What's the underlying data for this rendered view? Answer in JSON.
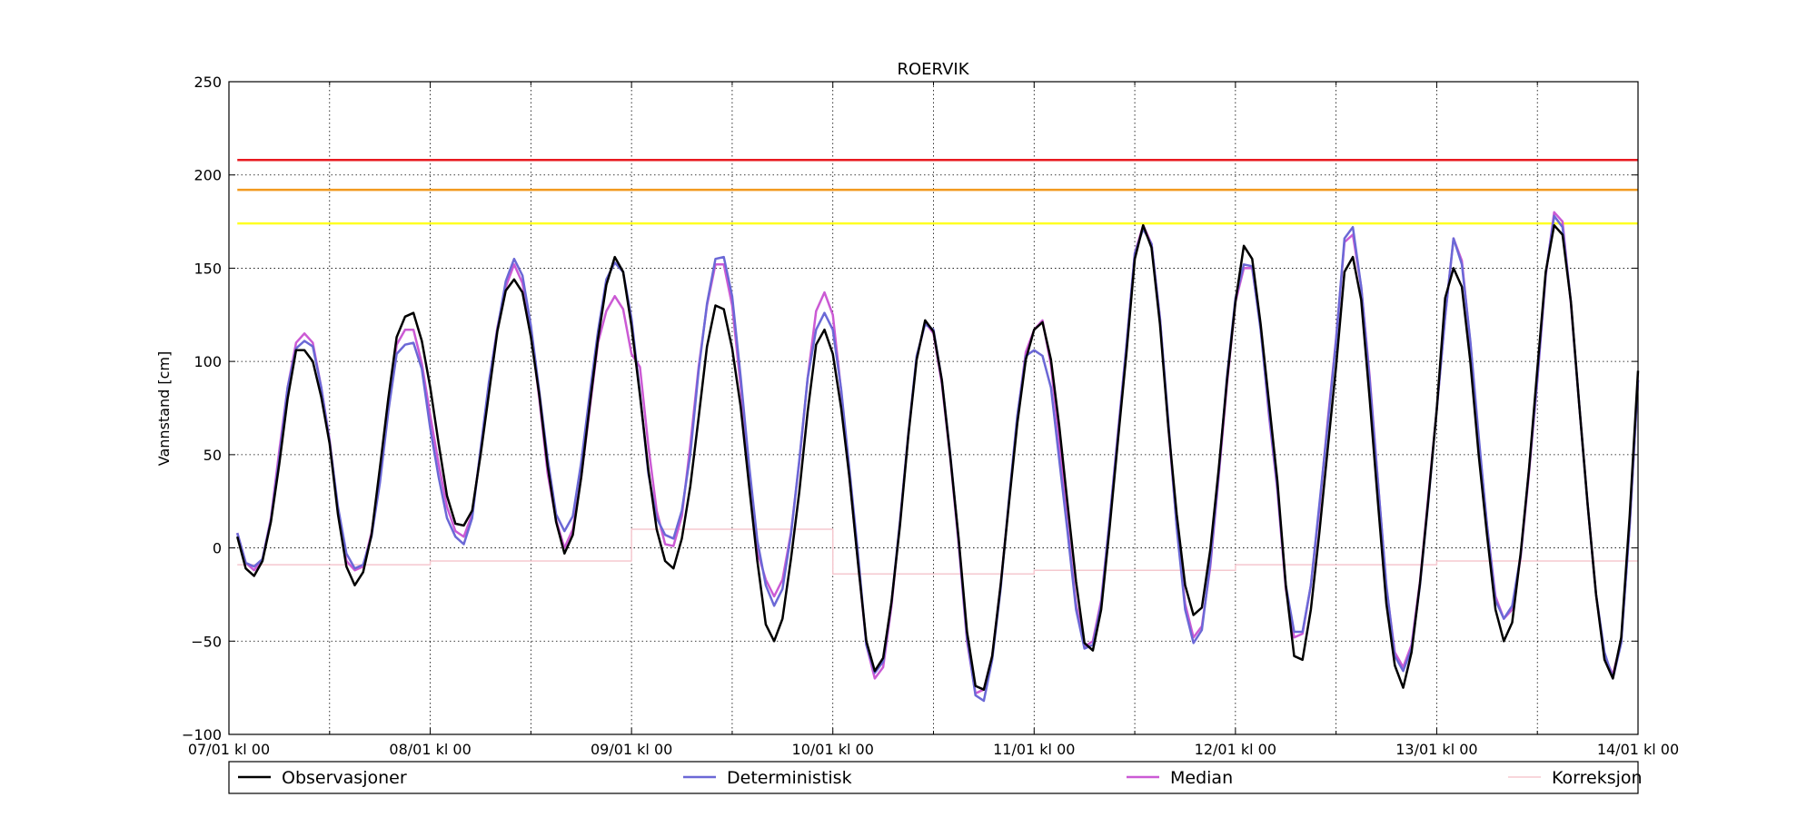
{
  "chart_data": {
    "type": "line",
    "title": "ROERVIK",
    "xlabel": "",
    "ylabel": "Vannstand [cm]",
    "ylim": [
      -100,
      250
    ],
    "yticks": [
      -100,
      -50,
      0,
      50,
      100,
      150,
      200,
      250
    ],
    "ytick_labels": [
      "−100",
      "−50",
      "0",
      "50",
      "100",
      "150",
      "200",
      "250"
    ],
    "xlim": [
      0,
      168
    ],
    "xticks": [
      0,
      24,
      48,
      72,
      96,
      120,
      144,
      168
    ],
    "xtick_labels": [
      "07/01 kl 00",
      "08/01 kl 00",
      "09/01 kl 00",
      "10/01 kl 00",
      "11/01 kl 00",
      "12/01 kl 00",
      "13/01 kl 00",
      "14/01 kl 00"
    ],
    "x_minor_ticks": [
      12,
      36,
      60,
      84,
      108,
      132,
      156
    ],
    "grid": true,
    "legend_position": "bottom",
    "x_step_hours": 1,
    "x_start_hour": 1,
    "thresholds": [
      {
        "value": 208,
        "color": "#e8191f"
      },
      {
        "value": 192,
        "color": "#f29a1f"
      },
      {
        "value": 174,
        "color": "#ffff22"
      }
    ],
    "series": [
      {
        "name": "Observasjoner",
        "color": "#000000",
        "values": [
          6,
          -11,
          -15,
          -7,
          14,
          45,
          80,
          106,
          106,
          100,
          81,
          56,
          18,
          -10,
          -20,
          -13,
          7,
          43,
          80,
          113,
          124,
          126,
          111,
          86,
          56,
          28,
          13,
          12,
          20,
          50,
          83,
          116,
          138,
          144,
          137,
          113,
          82,
          44,
          14,
          -3,
          7,
          38,
          76,
          112,
          141,
          156,
          148,
          119,
          82,
          42,
          10,
          -7,
          -11,
          5,
          33,
          70,
          108,
          130,
          128,
          107,
          76,
          34,
          -7,
          -41,
          -50,
          -38,
          -6,
          30,
          73,
          109,
          117,
          104,
          75,
          37,
          -8,
          -50,
          -66,
          -59,
          -29,
          12,
          60,
          101,
          122,
          116,
          90,
          49,
          5,
          -45,
          -74,
          -76,
          -58,
          -20,
          24,
          67,
          101,
          117,
          121,
          101,
          65,
          23,
          -18,
          -51,
          -55,
          -33,
          11,
          58,
          104,
          155,
          173,
          161,
          120,
          65,
          18,
          -20,
          -36,
          -32,
          -1,
          42,
          90,
          132,
          162,
          155,
          120,
          78,
          36,
          -20,
          -58,
          -60,
          -33,
          8,
          53,
          97,
          148,
          156,
          133,
          80,
          24,
          -30,
          -63,
          -75,
          -56,
          -19,
          26,
          74,
          134,
          150,
          140,
          100,
          50,
          7,
          -33,
          -50,
          -40,
          -3,
          42,
          96,
          148,
          173,
          168,
          132,
          76,
          23,
          -25,
          -60,
          -70,
          -48,
          17,
          95
        ],
        "_note_source": "hourly"
      },
      {
        "name": "Deterministisk",
        "color": "#6b68d6",
        "values": [
          8,
          -8,
          -10,
          -6,
          15,
          48,
          86,
          107,
          111,
          108,
          86,
          57,
          22,
          -3,
          -11,
          -9,
          6,
          35,
          73,
          104,
          109,
          110,
          96,
          64,
          38,
          16,
          6,
          2,
          16,
          53,
          89,
          117,
          143,
          155,
          146,
          119,
          84,
          48,
          18,
          9,
          17,
          46,
          82,
          116,
          144,
          153,
          148,
          123,
          83,
          40,
          16,
          7,
          5,
          20,
          50,
          95,
          131,
          155,
          156,
          135,
          92,
          45,
          4,
          -20,
          -31,
          -22,
          7,
          47,
          91,
          117,
          126,
          117,
          85,
          41,
          -3,
          -52,
          -67,
          -61,
          -29,
          14,
          61,
          103,
          120,
          117,
          90,
          50,
          4,
          -48,
          -79,
          -82,
          -60,
          -22,
          26,
          71,
          103,
          106,
          103,
          86,
          47,
          8,
          -33,
          -54,
          -52,
          -30,
          15,
          61,
          108,
          158,
          171,
          163,
          123,
          68,
          11,
          -33,
          -51,
          -44,
          -8,
          40,
          92,
          134,
          152,
          151,
          117,
          73,
          33,
          -20,
          -45,
          -45,
          -20,
          23,
          66,
          111,
          166,
          172,
          140,
          90,
          35,
          -20,
          -58,
          -66,
          -54,
          -20,
          25,
          74,
          124,
          166,
          152,
          111,
          60,
          12,
          -28,
          -38,
          -31,
          -4,
          42,
          91,
          147,
          178,
          172,
          132,
          76,
          23,
          -25,
          -56,
          -70,
          -51,
          12,
          90
        ]
      },
      {
        "name": "Median",
        "color": "#cb5ad4",
        "values": [
          8,
          -8,
          -12,
          -6,
          16,
          52,
          86,
          110,
          115,
          110,
          86,
          58,
          20,
          -7,
          -12,
          -10,
          8,
          37,
          75,
          109,
          117,
          117,
          99,
          71,
          45,
          22,
          9,
          6,
          18,
          52,
          88,
          118,
          140,
          152,
          142,
          116,
          80,
          40,
          15,
          0,
          10,
          38,
          74,
          110,
          127,
          135,
          128,
          104,
          97,
          55,
          20,
          2,
          1,
          17,
          55,
          97,
          130,
          152,
          152,
          130,
          87,
          41,
          -2,
          -17,
          -26,
          -17,
          8,
          46,
          91,
          127,
          137,
          125,
          84,
          37,
          -7,
          -52,
          -70,
          -64,
          -31,
          14,
          61,
          102,
          121,
          115,
          88,
          48,
          2,
          -50,
          -78,
          -76,
          -58,
          -20,
          25,
          70,
          105,
          117,
          122,
          98,
          57,
          11,
          -30,
          -53,
          -50,
          -28,
          15,
          62,
          108,
          158,
          173,
          163,
          123,
          65,
          12,
          -30,
          -48,
          -42,
          -10,
          38,
          88,
          132,
          150,
          150,
          118,
          71,
          31,
          -22,
          -48,
          -46,
          -20,
          21,
          68,
          112,
          164,
          168,
          140,
          92,
          35,
          -21,
          -56,
          -64,
          -52,
          -18,
          28,
          74,
          124,
          166,
          154,
          110,
          58,
          12,
          -26,
          -38,
          -33,
          -5,
          40,
          90,
          146,
          180,
          175,
          131,
          76,
          23,
          -25,
          -58,
          -68,
          -50,
          12,
          90
        ]
      },
      {
        "name": "Korreksjon",
        "color": "#f5c8cf",
        "steps": [
          {
            "from": 0,
            "to": 24,
            "value": -9
          },
          {
            "from": 24,
            "to": 48,
            "value": -7
          },
          {
            "from": 48,
            "to": 72,
            "value": 10
          },
          {
            "from": 72,
            "to": 96,
            "value": -14
          },
          {
            "from": 96,
            "to": 120,
            "value": -12
          },
          {
            "from": 120,
            "to": 144,
            "value": -9
          },
          {
            "from": 144,
            "to": 168,
            "value": -7
          }
        ]
      }
    ]
  }
}
